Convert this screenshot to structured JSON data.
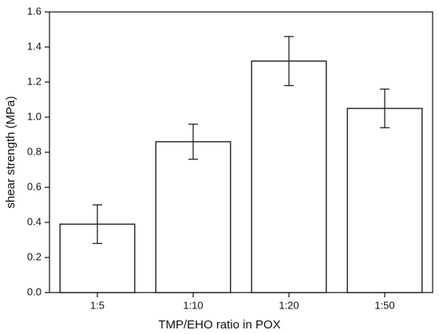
{
  "chart_data": {
    "type": "bar",
    "xlabel": "TMP/EHO ratio in POX",
    "ylabel": "shear strength (MPa)",
    "categories": [
      "1:5",
      "1:10",
      "1:20",
      "1:50"
    ],
    "values": [
      0.39,
      0.86,
      1.32,
      1.05
    ],
    "errors": [
      0.11,
      0.1,
      0.14,
      0.11
    ],
    "color": "#ffffff",
    "ylim": [
      0,
      1.6
    ],
    "yticks": [
      {
        "value": 0,
        "label": "0.0"
      },
      0.2,
      0.4,
      0.6,
      0.8,
      {
        "value": 1,
        "label": "1.0"
      },
      1.2,
      1.4,
      1.6
    ],
    "grid": false
  }
}
